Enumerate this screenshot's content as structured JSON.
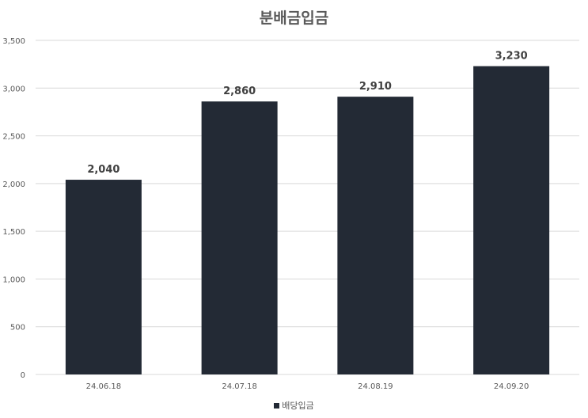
{
  "chart_data": {
    "type": "bar",
    "title": "분배금입금",
    "categories": [
      "24.06.18",
      "24.07.18",
      "24.08.19",
      "24.09.20"
    ],
    "series": [
      {
        "name": "배당입금",
        "values": [
          2040,
          2860,
          2910,
          3230
        ]
      }
    ],
    "data_labels": [
      "2,040",
      "2,860",
      "2,910",
      "3,230"
    ],
    "yticks": [
      0,
      500,
      1000,
      1500,
      2000,
      2500,
      3000,
      3500
    ],
    "ytick_labels": [
      "0",
      "500",
      "1,000",
      "1,500",
      "2,000",
      "2,500",
      "3,000",
      "3,500"
    ],
    "ylim": [
      0,
      3500
    ],
    "grid": true,
    "legend_position": "bottom",
    "bar_color": "#232a35"
  }
}
